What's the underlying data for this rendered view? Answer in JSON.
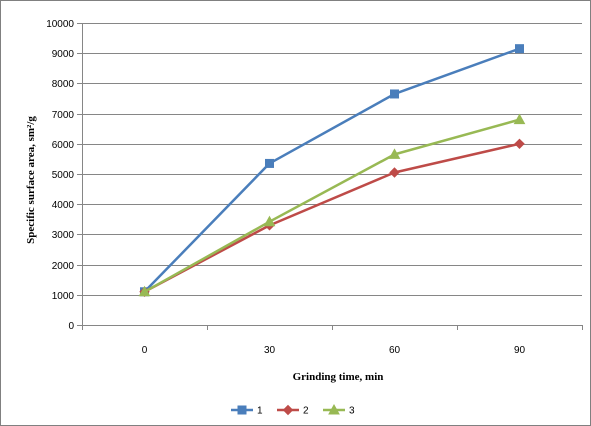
{
  "chart_data": {
    "type": "line",
    "title": "",
    "xlabel": "Grinding time, min",
    "ylabel": "Specific surface area, sm²/g",
    "categories": [
      "0",
      "30",
      "60",
      "90"
    ],
    "ylim": [
      0,
      10000
    ],
    "yticks": [
      0,
      1000,
      2000,
      3000,
      4000,
      5000,
      6000,
      7000,
      8000,
      9000,
      10000
    ],
    "grid": true,
    "legend_position": "bottom",
    "series": [
      {
        "name": "1",
        "values": [
          1100,
          5350,
          7650,
          9150
        ],
        "color": "#4a7ebb",
        "marker": "square"
      },
      {
        "name": "2",
        "values": [
          1100,
          3300,
          5050,
          6000
        ],
        "color": "#be4b48",
        "marker": "diamond"
      },
      {
        "name": "3",
        "values": [
          1100,
          3420,
          5650,
          6800
        ],
        "color": "#98b954",
        "marker": "triangle"
      }
    ]
  }
}
